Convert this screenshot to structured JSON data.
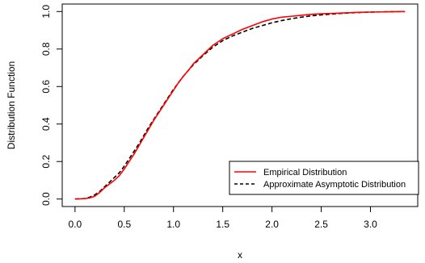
{
  "chart_data": {
    "type": "line",
    "xlabel": "x",
    "ylabel": "Distribution Function",
    "xlim": [
      -0.13,
      3.48
    ],
    "ylim": [
      -0.04,
      1.04
    ],
    "xticks": [
      0.0,
      0.5,
      1.0,
      1.5,
      2.0,
      2.5,
      3.0
    ],
    "xtick_labels": [
      "0.0",
      "0.5",
      "1.0",
      "1.5",
      "2.0",
      "2.5",
      "3.0"
    ],
    "yticks": [
      0.0,
      0.2,
      0.4,
      0.6,
      0.8,
      1.0
    ],
    "ytick_labels": [
      "0.0",
      "0.2",
      "0.4",
      "0.6",
      "0.8",
      "1.0"
    ],
    "grid": false,
    "legend_position": "bottom-right",
    "series": [
      {
        "name": "Empirical Distribution",
        "color": "#ff0000",
        "dash": "solid",
        "x": [
          0.0,
          0.1,
          0.15,
          0.2,
          0.25,
          0.3,
          0.35,
          0.4,
          0.45,
          0.5,
          0.55,
          0.6,
          0.65,
          0.7,
          0.75,
          0.8,
          0.85,
          0.9,
          0.95,
          1.0,
          1.05,
          1.1,
          1.15,
          1.2,
          1.3,
          1.4,
          1.5,
          1.6,
          1.7,
          1.8,
          1.9,
          2.0,
          2.1,
          2.2,
          2.3,
          2.4,
          2.5,
          2.6,
          2.7,
          2.8,
          2.9,
          3.0,
          3.1,
          3.2,
          3.3,
          3.35
        ],
        "y": [
          0.0,
          0.002,
          0.006,
          0.015,
          0.035,
          0.06,
          0.08,
          0.1,
          0.125,
          0.16,
          0.2,
          0.24,
          0.285,
          0.33,
          0.375,
          0.42,
          0.46,
          0.5,
          0.54,
          0.58,
          0.62,
          0.655,
          0.685,
          0.72,
          0.77,
          0.82,
          0.855,
          0.88,
          0.905,
          0.925,
          0.945,
          0.96,
          0.97,
          0.975,
          0.98,
          0.985,
          0.988,
          0.99,
          0.992,
          0.994,
          0.996,
          0.997,
          0.998,
          0.999,
          1.0,
          1.0
        ]
      },
      {
        "name": "Approximate Asymptotic Distribution",
        "color": "#000000",
        "dash": "dashed",
        "x": [
          0.0,
          0.1,
          0.15,
          0.2,
          0.25,
          0.3,
          0.35,
          0.4,
          0.45,
          0.5,
          0.55,
          0.6,
          0.65,
          0.7,
          0.75,
          0.8,
          0.85,
          0.9,
          0.95,
          1.0,
          1.05,
          1.1,
          1.15,
          1.2,
          1.3,
          1.4,
          1.5,
          1.6,
          1.7,
          1.8,
          1.9,
          2.0,
          2.1,
          2.2,
          2.3,
          2.4,
          2.5,
          2.6,
          2.7,
          2.8,
          2.9,
          3.0,
          3.1,
          3.2,
          3.3,
          3.35
        ],
        "y": [
          0.0,
          0.003,
          0.01,
          0.022,
          0.04,
          0.065,
          0.09,
          0.115,
          0.14,
          0.175,
          0.215,
          0.255,
          0.295,
          0.34,
          0.385,
          0.425,
          0.465,
          0.505,
          0.545,
          0.585,
          0.62,
          0.655,
          0.685,
          0.715,
          0.765,
          0.81,
          0.845,
          0.87,
          0.89,
          0.91,
          0.925,
          0.94,
          0.952,
          0.962,
          0.97,
          0.977,
          0.982,
          0.986,
          0.99,
          0.993,
          0.995,
          0.997,
          0.998,
          0.999,
          1.0,
          1.0
        ]
      }
    ]
  }
}
